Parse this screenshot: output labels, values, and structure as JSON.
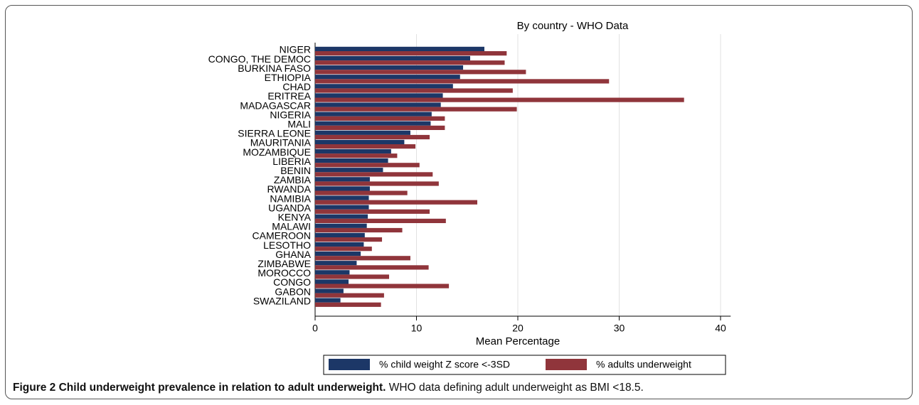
{
  "chart_data": {
    "type": "hbar",
    "title": "By country - WHO Data",
    "categories": [
      "NIGER",
      "CONGO, THE DEMOC",
      "BURKINA FASO",
      "ETHIOPIA",
      "CHAD",
      "ERITREA",
      "MADAGASCAR",
      "NIGERIA",
      "MALI",
      "SIERRA LEONE",
      "MAURITANIA",
      "MOZAMBIQUE",
      "LIBERIA",
      "BENIN",
      "ZAMBIA",
      "RWANDA",
      "NAMIBIA",
      "UGANDA",
      "KENYA",
      "MALAWI",
      "CAMEROON",
      "LESOTHO",
      "GHANA",
      "ZIMBABWE",
      "MOROCCO",
      "CONGO",
      "GABON",
      "SWAZILAND"
    ],
    "series": [
      {
        "name": "% child weight Z score <-3SD",
        "color": "#1c3767",
        "values": [
          16.7,
          15.3,
          14.6,
          14.3,
          13.6,
          12.6,
          12.4,
          11.5,
          11.4,
          9.4,
          8.8,
          7.5,
          7.2,
          6.7,
          5.4,
          5.4,
          5.3,
          5.3,
          5.2,
          5.1,
          4.9,
          4.8,
          4.5,
          4.1,
          3.4,
          3.3,
          2.8,
          2.5
        ]
      },
      {
        "name": "% adults underweight",
        "color": "#90353b",
        "values": [
          18.9,
          18.7,
          20.8,
          29.0,
          19.5,
          36.4,
          19.9,
          12.8,
          12.8,
          11.3,
          9.9,
          8.1,
          10.3,
          11.6,
          12.2,
          9.1,
          16.0,
          11.3,
          12.9,
          8.6,
          6.6,
          5.6,
          9.4,
          11.2,
          7.3,
          13.2,
          6.8,
          6.5
        ]
      }
    ],
    "xlabel": "Mean Percentage",
    "xlim": [
      0,
      41
    ],
    "xticks": [
      0,
      10,
      20,
      30,
      40
    ],
    "grid": true,
    "legend": "bottom"
  },
  "caption": {
    "label": "Figure 2 Child underweight prevalence in relation to adult underweight.",
    "text": "WHO data defining adult underweight as BMI <18.5."
  }
}
